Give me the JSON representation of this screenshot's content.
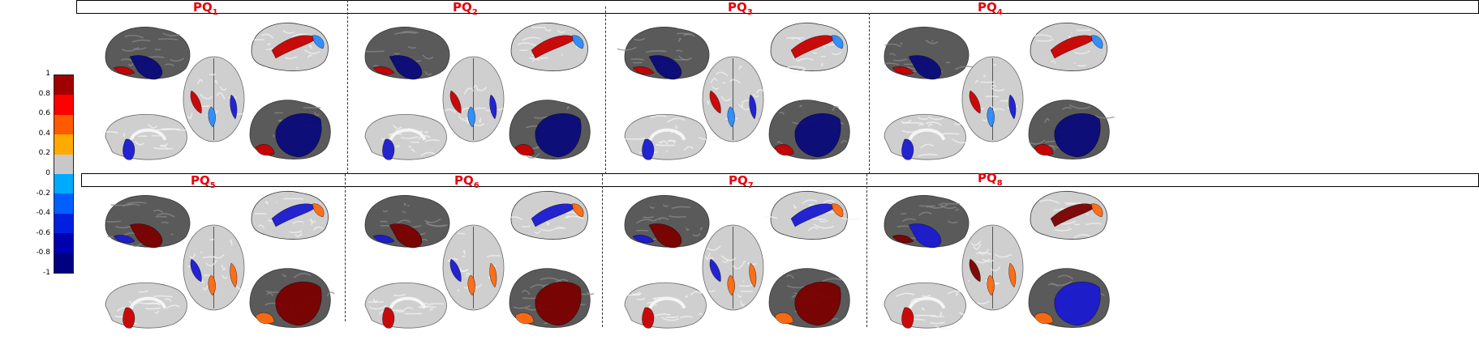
{
  "figure": {
    "panels": [
      {
        "label": "PQ",
        "index": "1",
        "view": "a"
      },
      {
        "label": "PQ",
        "index": "2",
        "view": "a"
      },
      {
        "label": "PQ",
        "index": "3",
        "view": "a"
      },
      {
        "label": "PQ",
        "index": "4",
        "view": "a"
      },
      {
        "label": "PQ",
        "index": "5",
        "view": "b"
      },
      {
        "label": "PQ",
        "index": "6",
        "view": "b"
      },
      {
        "label": "PQ",
        "index": "7",
        "view": "b"
      },
      {
        "label": "PQ",
        "index": "8",
        "view": "c"
      }
    ]
  },
  "colorbar": {
    "ticks": [
      "1",
      "0.8",
      "0.6",
      "0.4",
      "0.2",
      "0",
      "-0.2",
      "-0.4",
      "-0.6",
      "-0.8",
      "-1"
    ],
    "colors": [
      "#a00000",
      "#ff0000",
      "#ff5a00",
      "#ffaa00",
      "#c8c8c8",
      "#00aaff",
      "#0060ff",
      "#0020e0",
      "#0000b0",
      "#000080"
    ]
  },
  "colors": {
    "label": "#e8000b",
    "cortex_dark": "#5a5a5a",
    "cortex_light": "#cfcfcf",
    "red": "#c80000",
    "dark_red": "#7a0000",
    "blue": "#1a1ad0",
    "navy": "#0a0a7a",
    "light_blue": "#2a8cff",
    "orange": "#ff6a10"
  }
}
